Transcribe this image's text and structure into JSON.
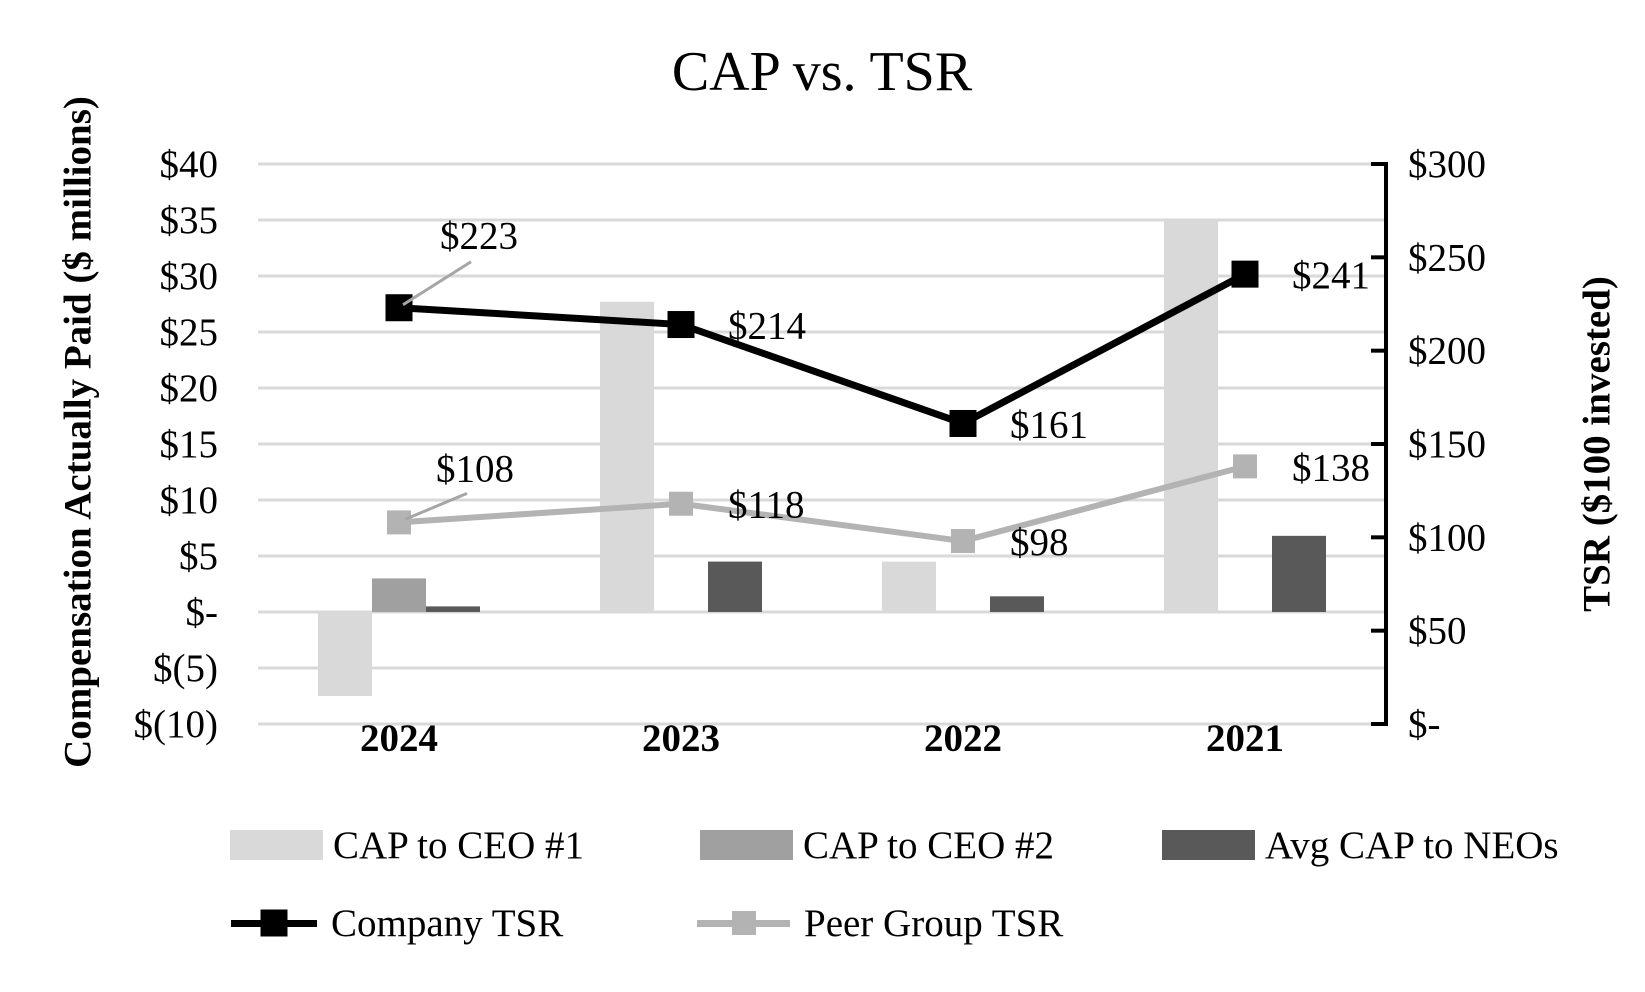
{
  "chart_data": {
    "type": "combo-bar-line",
    "title": "CAP vs. TSR",
    "categories": [
      "2024",
      "2023",
      "2022",
      "2021"
    ],
    "bar_series": [
      {
        "name": "CAP to CEO #1",
        "color": "#d9d9d9",
        "values": [
          -7.5,
          27.7,
          4.5,
          35.0
        ]
      },
      {
        "name": "CAP to CEO #2",
        "color": "#a0a0a0",
        "values": [
          3.0,
          0,
          0,
          0
        ]
      },
      {
        "name": "Avg CAP to NEOs",
        "color": "#595959",
        "values": [
          0.5,
          4.5,
          1.4,
          6.8
        ]
      }
    ],
    "line_series": [
      {
        "name": "Company TSR",
        "color": "#000000",
        "values": [
          223,
          214,
          161,
          241
        ],
        "data_labels": [
          "$223",
          "$214",
          "$161",
          "$241"
        ]
      },
      {
        "name": "Peer Group TSR",
        "color": "#b3b3b3",
        "values": [
          108,
          118,
          98,
          138
        ],
        "data_labels": [
          "$108",
          "$118",
          "$98",
          "$138"
        ]
      }
    ],
    "left_axis": {
      "title": "Compensation Actually Paid ($ millions)",
      "tick_labels": [
        "$40",
        "$35",
        "$30",
        "$25",
        "$20",
        "$15",
        "$10",
        "$5",
        "$-",
        "$(5)",
        "$(10)"
      ],
      "min": -10,
      "max": 40,
      "step": 5
    },
    "right_axis": {
      "title": "TSR ($100 invested)",
      "tick_labels": [
        "$300",
        "$250",
        "$200",
        "$150",
        "$100",
        "$50",
        "$-"
      ],
      "min": 0,
      "max": 300,
      "step": 50
    },
    "grid": true,
    "legend_position": "bottom"
  }
}
